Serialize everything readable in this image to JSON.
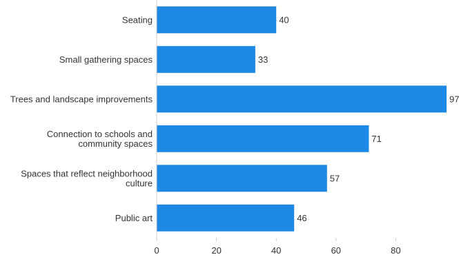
{
  "chart_data": {
    "type": "bar",
    "orientation": "horizontal",
    "categories": [
      [
        "Seating"
      ],
      [
        "Small gathering spaces"
      ],
      [
        "Trees and landscape improvements"
      ],
      [
        "Connection to schools and",
        "community spaces"
      ],
      [
        "Spaces that reflect neighborhood",
        "culture"
      ],
      [
        "Public art"
      ]
    ],
    "values": [
      40,
      33,
      97,
      71,
      57,
      46
    ],
    "xlim": [
      0,
      97
    ],
    "xticks": [
      0,
      20,
      40,
      60,
      80
    ],
    "grid": false,
    "legend": "none",
    "colors": {
      "bar": "#1e88e5",
      "axis": "#cccccc",
      "text": "#333333"
    }
  }
}
